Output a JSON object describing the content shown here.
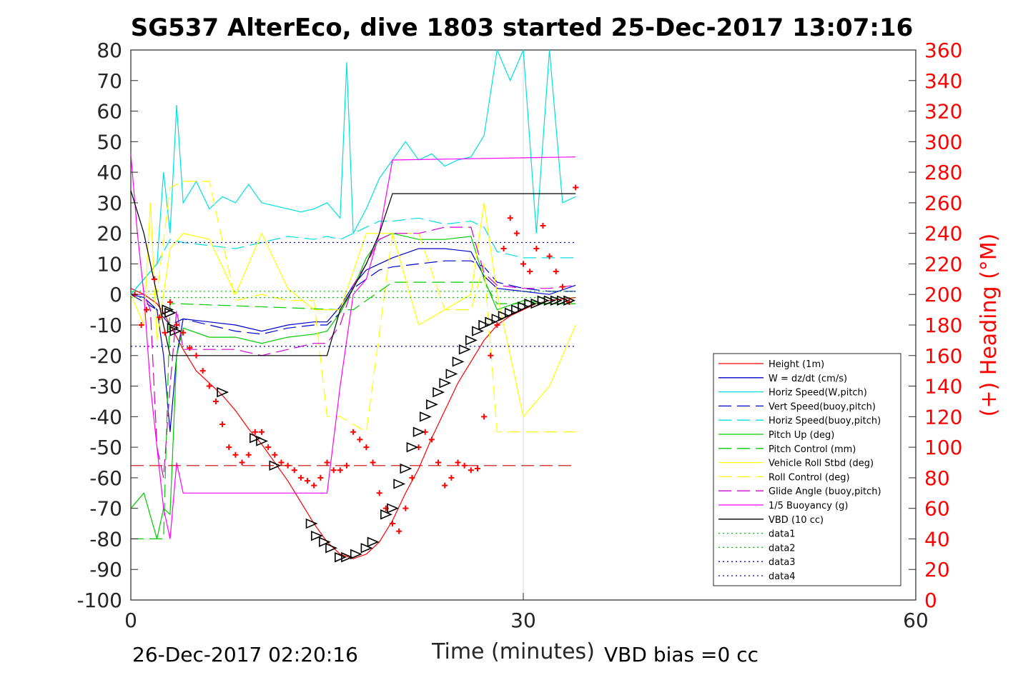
{
  "chart_data": {
    "type": "line",
    "title": "SG537 AlterEco, dive 1803 started 25-Dec-2017 13:07:16",
    "xlabel": "Time (minutes)",
    "ylabel": "",
    "ylabel_right": "(+) Heading (°M)",
    "xlim": [
      0,
      60
    ],
    "ylim": [
      -100,
      80
    ],
    "ylim_right": [
      0,
      360
    ],
    "x_ticks": [
      "0",
      "30",
      "60"
    ],
    "y_ticks": [
      "80",
      "70",
      "60",
      "50",
      "40",
      "30",
      "20",
      "10",
      "0",
      "-10",
      "-20",
      "-30",
      "-40",
      "-50",
      "-60",
      "-70",
      "-80",
      "-90",
      "-100"
    ],
    "y_ticks_right": [
      "360",
      "340",
      "320",
      "300",
      "280",
      "260",
      "240",
      "220",
      "200",
      "180",
      "160",
      "140",
      "120",
      "100",
      "80",
      "60",
      "40",
      "20",
      "0"
    ],
    "grid": "x-only",
    "legend_placement": "lower-right",
    "footer_left": "26-Dec-2017 02:20:16",
    "footer_right": "VBD bias =0 cc",
    "legend": [
      {
        "name": "Height (1m)",
        "color": "#ff0000",
        "dash": "solid"
      },
      {
        "name": "W = dz/dt (cm/s)",
        "color": "#0000cc",
        "dash": "solid"
      },
      {
        "name": "Horiz Speed(W,pitch)",
        "color": "#00e0e0",
        "dash": "solid"
      },
      {
        "name": "Vert Speed(buoy,pitch)",
        "color": "#0000cc",
        "dash": "dashed"
      },
      {
        "name": "Horiz Speed(buoy,pitch)",
        "color": "#00e0e0",
        "dash": "dashed"
      },
      {
        "name": "Pitch Up (deg)",
        "color": "#00cc00",
        "dash": "solid"
      },
      {
        "name": "Pitch Control (mm)",
        "color": "#00cc00",
        "dash": "dashed"
      },
      {
        "name": "Vehicle Roll Stbd (deg)",
        "color": "#ffff00",
        "dash": "solid"
      },
      {
        "name": "Roll Control (deg)",
        "color": "#ffff00",
        "dash": "dashed"
      },
      {
        "name": "Glide Angle (buoy,pitch)",
        "color": "#cc00cc",
        "dash": "dashed"
      },
      {
        "name": "1/5 Buoyancy (g)",
        "color": "#ff00ff",
        "dash": "solid"
      },
      {
        "name": "VBD (10 cc)",
        "color": "#000000",
        "dash": "solid"
      },
      {
        "name": "data1",
        "color": "#00cc00",
        "dash": "dotted"
      },
      {
        "name": "data2",
        "color": "#00cc00",
        "dash": "dotted"
      },
      {
        "name": "data3",
        "color": "#0000cc",
        "dash": "dotted"
      },
      {
        "name": "data4",
        "color": "#0000cc",
        "dash": "dotted"
      }
    ],
    "series": [
      {
        "key": "height",
        "axis": "left",
        "x": [
          0,
          1,
          2,
          2.5,
          3,
          3.5,
          4,
          5,
          6,
          7,
          8,
          9,
          10,
          11,
          12,
          13,
          14,
          15,
          16,
          17,
          18,
          19,
          20,
          21,
          22,
          23,
          24,
          25,
          26,
          27,
          28,
          29,
          30,
          31,
          32,
          33,
          34
        ],
        "y": [
          2,
          0,
          -3,
          -6,
          -10,
          -14,
          -18,
          -25,
          -29,
          -33,
          -38,
          -44,
          -49,
          -55,
          -61,
          -68,
          -75,
          -81,
          -85,
          -86.5,
          -85,
          -81,
          -74,
          -65,
          -57,
          -47,
          -38,
          -29,
          -22,
          -15,
          -10,
          -7,
          -5,
          -3,
          -2,
          -1.5,
          -1
        ]
      },
      {
        "key": "w",
        "axis": "left",
        "x": [
          0,
          1,
          2,
          2.5,
          3,
          3.5,
          4,
          6,
          8,
          10,
          12,
          14,
          15,
          16,
          17,
          18,
          19,
          20,
          22,
          24,
          26,
          27,
          28,
          30,
          32,
          34
        ],
        "y": [
          0,
          -1,
          -5,
          -20,
          -45,
          -20,
          -8,
          -9,
          -10,
          -12,
          -10,
          -9,
          -9,
          -4,
          3,
          8,
          10,
          12,
          15,
          15,
          14,
          6,
          2,
          1,
          0,
          3
        ]
      },
      {
        "key": "hspeed_w",
        "axis": "left",
        "x": [
          0,
          1,
          2,
          2.5,
          3,
          3.5,
          4,
          5,
          6,
          7,
          8,
          9,
          10,
          11,
          12,
          13,
          14,
          15,
          16,
          16.5,
          17,
          18,
          19,
          20,
          21,
          22,
          23,
          24,
          25,
          26,
          27,
          28,
          29,
          30,
          31,
          32,
          33,
          34
        ],
        "y": [
          0,
          5,
          10,
          40,
          20,
          62,
          30,
          37,
          28,
          32,
          30,
          36,
          30,
          29,
          28,
          27,
          28,
          30,
          25,
          76,
          20,
          28,
          38,
          44,
          50,
          44,
          46,
          42,
          44,
          45,
          52,
          80,
          70,
          80,
          20,
          80,
          30,
          32
        ]
      },
      {
        "key": "vspeed_b",
        "axis": "left",
        "x": [
          0,
          2,
          3,
          4,
          6,
          8,
          10,
          12,
          14,
          15,
          16,
          17,
          18,
          19,
          20,
          22,
          24,
          26,
          27,
          28,
          30,
          32,
          34
        ],
        "y": [
          0,
          -5,
          -10,
          -8,
          -10,
          -12,
          -13,
          -11,
          -10,
          -10,
          -6,
          2,
          5,
          8,
          9,
          10,
          11,
          11,
          9,
          4,
          2,
          1,
          1
        ]
      },
      {
        "key": "hspeed_b",
        "axis": "left",
        "x": [
          0,
          2,
          3,
          4,
          6,
          8,
          10,
          12,
          14,
          15,
          16,
          17,
          18,
          19,
          20,
          22,
          24,
          26,
          27,
          28,
          30,
          32,
          34
        ],
        "y": [
          0,
          10,
          18,
          17,
          16,
          15,
          17,
          19,
          18,
          19,
          18,
          20,
          22,
          24,
          24,
          25,
          23,
          24,
          22,
          14,
          12,
          12,
          12
        ]
      },
      {
        "key": "pitch_up",
        "axis": "left",
        "x": [
          0,
          1,
          2,
          2.5,
          3,
          3.5,
          4,
          6,
          8,
          10,
          12,
          14,
          15,
          16,
          17,
          18,
          19,
          20,
          22,
          24,
          26,
          27,
          28,
          30,
          32,
          34
        ],
        "y": [
          -70,
          -65,
          -80,
          -70,
          -72,
          -20,
          -11,
          -14,
          -14,
          -16,
          -14,
          -13,
          -12,
          -6,
          2,
          12,
          18,
          20,
          18,
          18,
          19,
          5,
          -5,
          -2,
          -3,
          -3
        ]
      },
      {
        "key": "pitch_ctrl",
        "axis": "left",
        "x": [
          0,
          2.5,
          3,
          3.5,
          16,
          17,
          20,
          27,
          28,
          34
        ],
        "y": [
          -80,
          -80,
          -3,
          -3,
          -5,
          -5,
          4,
          4,
          -3,
          -3
        ]
      },
      {
        "key": "roll",
        "axis": "left",
        "x": [
          0,
          1,
          1.5,
          2,
          3,
          4,
          6,
          8,
          10,
          12,
          14,
          16,
          18,
          20,
          22,
          24,
          26,
          27,
          28,
          30,
          32,
          34
        ],
        "y": [
          0,
          -10,
          30,
          -15,
          15,
          20,
          18,
          0,
          20,
          2,
          -5,
          -5,
          20,
          20,
          -10,
          -5,
          0,
          30,
          0,
          -40,
          -30,
          -10
        ]
      },
      {
        "key": "roll_ctrl",
        "axis": "left",
        "x": [
          0,
          2,
          3,
          4,
          6,
          8,
          10,
          12,
          14,
          15,
          16,
          18,
          20,
          22,
          24,
          26,
          27,
          28,
          30,
          32,
          34
        ],
        "y": [
          0,
          0,
          35,
          37,
          37,
          -2,
          0,
          -2,
          -2,
          -40,
          -40,
          -45,
          20,
          20,
          -5,
          -5,
          10,
          -45,
          -45,
          -45,
          -45
        ]
      },
      {
        "key": "glide",
        "axis": "left",
        "x": [
          0,
          1,
          1.5,
          2,
          2.5,
          3,
          3.5,
          4,
          6,
          8,
          10,
          12,
          14,
          15,
          16,
          17,
          18,
          19,
          20,
          22,
          24,
          26,
          27,
          28,
          30,
          32,
          34
        ],
        "y": [
          0,
          0,
          -5,
          -50,
          -60,
          -30,
          -5,
          -18,
          -18,
          -18,
          -20,
          -18,
          -16,
          -16,
          -10,
          3,
          10,
          18,
          20,
          20,
          22,
          22,
          7,
          3,
          2,
          2,
          3
        ]
      },
      {
        "key": "buoyancy",
        "axis": "left",
        "x": [
          0,
          0.5,
          1,
          1.5,
          2,
          2.5,
          3,
          3.5,
          4,
          15,
          16,
          17,
          18,
          19,
          20,
          34
        ],
        "y": [
          46,
          20,
          0,
          -30,
          -50,
          -70,
          -80,
          -55,
          -65,
          -65,
          -30,
          0,
          5,
          20,
          44,
          45
        ]
      },
      {
        "key": "vbd",
        "axis": "left",
        "x": [
          0,
          1,
          2,
          3,
          15,
          16,
          17,
          18,
          19,
          20,
          34
        ],
        "y": [
          34,
          20,
          0,
          -20,
          -20,
          -5,
          2,
          10,
          20,
          33,
          33
        ]
      },
      {
        "key": "data1",
        "axis": "left",
        "x": [
          0,
          34
        ],
        "y": [
          -1,
          -1
        ]
      },
      {
        "key": "data2",
        "axis": "left",
        "x": [
          0,
          34
        ],
        "y": [
          1,
          1
        ]
      },
      {
        "key": "data3",
        "axis": "left",
        "x": [
          0,
          34
        ],
        "y": [
          17,
          17
        ]
      },
      {
        "key": "data4",
        "axis": "left",
        "x": [
          0,
          34
        ],
        "y": [
          -17,
          -17
        ]
      },
      {
        "key": "heading_ref",
        "axis": "right",
        "x": [
          0,
          34
        ],
        "y": [
          88,
          88
        ]
      }
    ],
    "heading_points": {
      "x": [
        0.3,
        0.8,
        1.2,
        1.8,
        2.2,
        2.6,
        3,
        3.5,
        4,
        4.5,
        5,
        5.5,
        6,
        6.5,
        7,
        7.5,
        8,
        8.5,
        9,
        9.5,
        10,
        10.5,
        11,
        11.5,
        12,
        12.5,
        13,
        13.5,
        14,
        14.5,
        15,
        15.5,
        16,
        16.5,
        17,
        17.5,
        18,
        18.5,
        19,
        19.5,
        20,
        20.5,
        21,
        21.5,
        22,
        22.5,
        23,
        23.5,
        24,
        24.5,
        25,
        25.5,
        26,
        26.5,
        27,
        27.5,
        28,
        28.5,
        29,
        29.5,
        30,
        30.5,
        31,
        31.5,
        32,
        32.5,
        33,
        33.5,
        34
      ],
      "y": [
        200,
        180,
        190,
        210,
        185,
        175,
        195,
        180,
        175,
        165,
        160,
        150,
        140,
        130,
        115,
        100,
        95,
        90,
        95,
        110,
        110,
        100,
        95,
        90,
        88,
        85,
        80,
        78,
        75,
        80,
        90,
        85,
        85,
        88,
        110,
        105,
        100,
        90,
        70,
        60,
        50,
        45,
        60,
        80,
        100,
        110,
        105,
        90,
        75,
        80,
        90,
        88,
        85,
        86,
        120,
        160,
        180,
        230,
        250,
        240,
        220,
        215,
        230,
        245,
        225,
        215,
        205,
        195,
        270
      ]
    },
    "markers": {
      "x": [
        2.8,
        3,
        3.2,
        3.4,
        7,
        9.5,
        10,
        11,
        13.8,
        14.2,
        14.8,
        15.3,
        16,
        16.5,
        17.2,
        18,
        18.5,
        19.5,
        20,
        20.5,
        21,
        21.5,
        22,
        22.5,
        23,
        23.5,
        24,
        24.5,
        25,
        25.5,
        26,
        26.5,
        27,
        27.5,
        28,
        28.5,
        29,
        29.5,
        30,
        30.5,
        31,
        31.5,
        32,
        32.5,
        33,
        33.5
      ],
      "y": [
        -5,
        -6,
        -11,
        -12,
        -32,
        -47,
        -48,
        -56,
        -75,
        -79,
        -81,
        -83,
        -86,
        -86,
        -85,
        -83,
        -81,
        -72,
        -70,
        -62,
        -57,
        -50,
        -45,
        -40,
        -36,
        -32,
        -29,
        -26,
        -22,
        -18,
        -15,
        -12,
        -10,
        -9,
        -8,
        -7,
        -6,
        -5,
        -4,
        -3,
        -3,
        -2,
        -2,
        -2,
        -2,
        -2
      ]
    },
    "right_label_hint": "Heading"
  }
}
